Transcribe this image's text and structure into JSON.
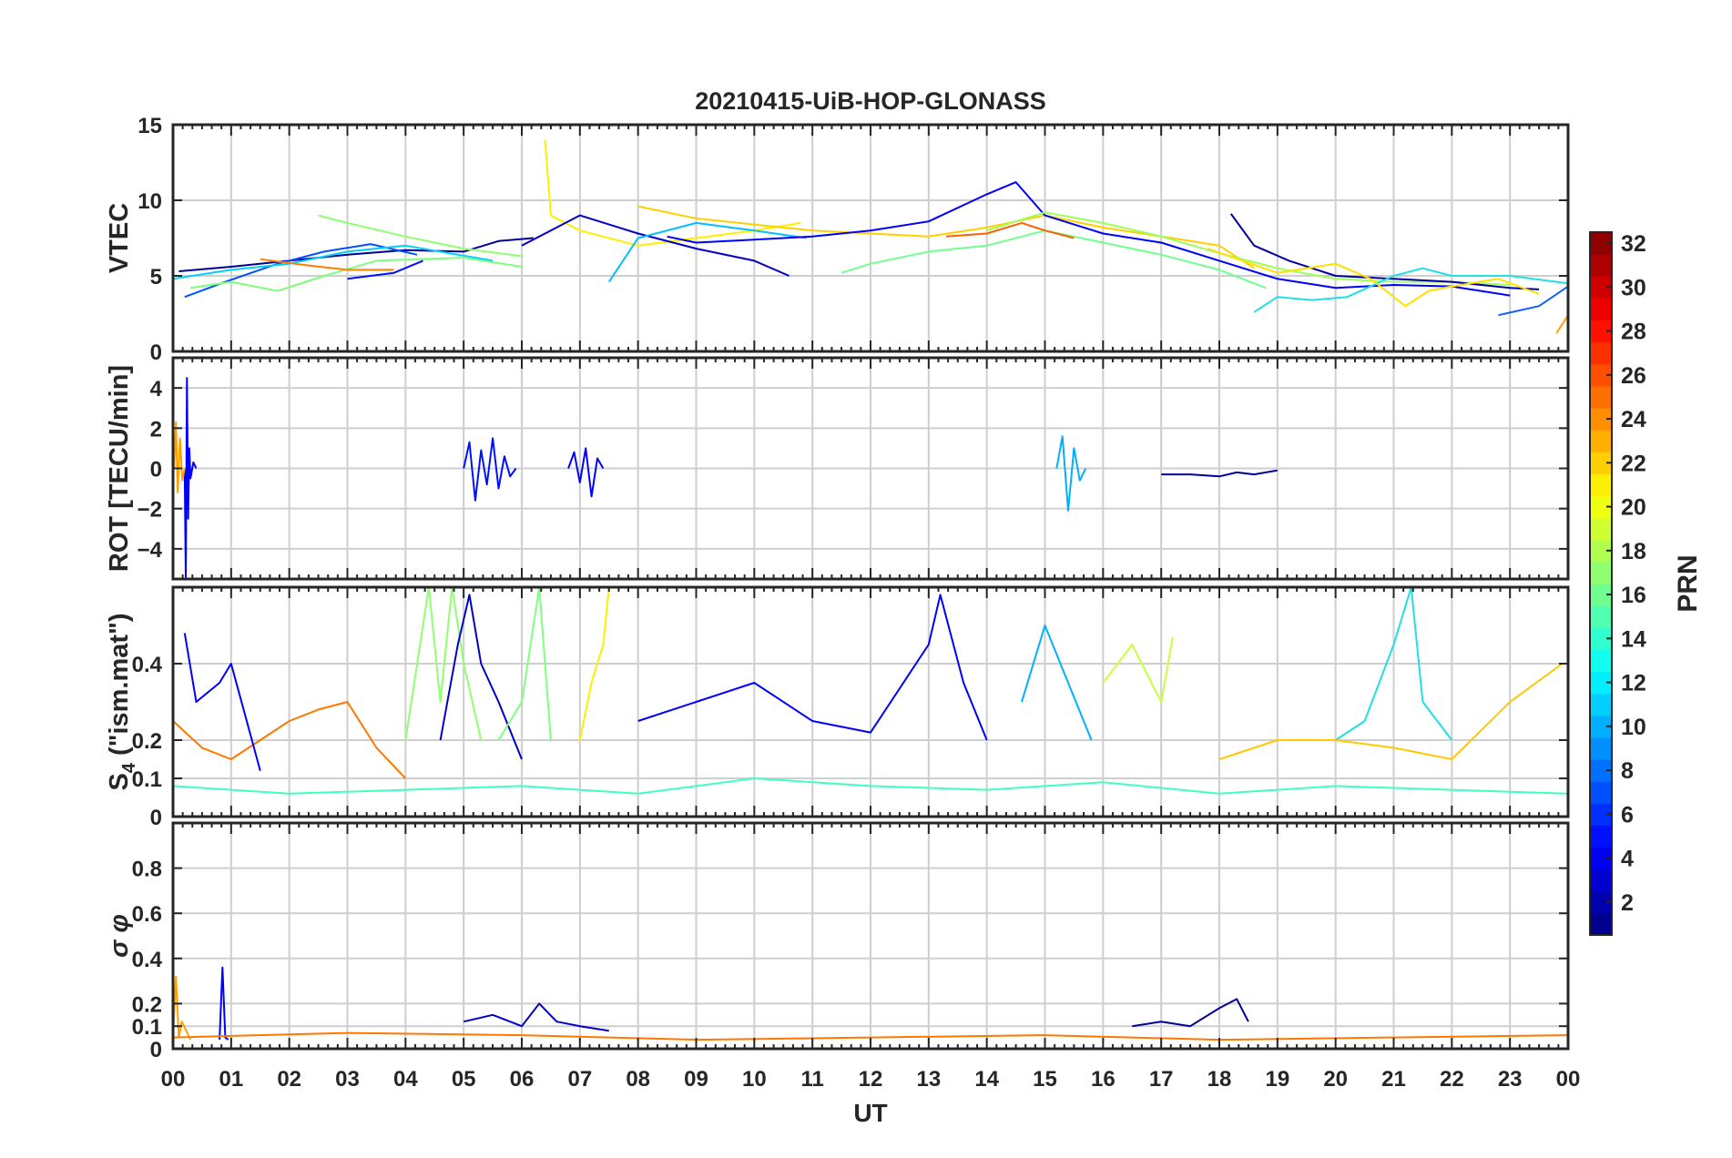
{
  "figure": {
    "title": "20210415-UiB-HOP-GLONASS",
    "xlabel": "UT",
    "x_ticks": [
      "00",
      "01",
      "02",
      "03",
      "04",
      "05",
      "06",
      "07",
      "08",
      "09",
      "10",
      "11",
      "12",
      "13",
      "14",
      "15",
      "16",
      "17",
      "18",
      "19",
      "20",
      "21",
      "22",
      "23",
      "00"
    ]
  },
  "colorbar": {
    "label": "PRN",
    "range": [
      1,
      32
    ],
    "ticks": [
      2,
      4,
      6,
      8,
      10,
      12,
      14,
      16,
      18,
      20,
      22,
      24,
      26,
      28,
      30,
      32
    ],
    "colormap": "jet"
  },
  "chart_data": [
    {
      "type": "line",
      "panel": "vtec",
      "ylabel": "VTEC",
      "xlim": [
        0,
        24
      ],
      "ylim": [
        0,
        15
      ],
      "y_ticks": [
        0,
        5,
        10,
        15
      ],
      "grid": true,
      "series": [
        {
          "color": "#000096",
          "x": [
            0.1,
            1.0,
            2.0,
            3.0,
            4.0,
            5.0,
            5.6,
            6.2
          ],
          "y": [
            5.3,
            5.6,
            6.0,
            6.4,
            6.7,
            6.6,
            7.3,
            7.5
          ]
        },
        {
          "color": "#0050ff",
          "x": [
            0.2,
            0.9,
            1.8,
            2.6,
            3.4,
            4.2
          ],
          "y": [
            3.6,
            4.6,
            5.8,
            6.6,
            7.1,
            6.4
          ]
        },
        {
          "color": "#00d0ff",
          "x": [
            0.0,
            1.0,
            2.0,
            3.0,
            4.0,
            5.5
          ],
          "y": [
            4.8,
            5.4,
            5.8,
            6.6,
            7.0,
            6.0
          ]
        },
        {
          "color": "#7dff7a",
          "x": [
            0.3,
            1.0,
            1.8,
            2.6,
            3.5,
            5.0,
            6.0
          ],
          "y": [
            4.2,
            4.6,
            4.0,
            5.0,
            6.0,
            6.2,
            5.6
          ]
        },
        {
          "color": "#90ff70",
          "x": [
            2.5,
            3.0,
            4.0,
            5.0,
            6.0
          ],
          "y": [
            9.0,
            8.5,
            7.6,
            6.8,
            6.3
          ]
        },
        {
          "color": "#ff8000",
          "x": [
            1.5,
            2.3,
            3.0,
            3.8
          ],
          "y": [
            6.1,
            5.7,
            5.4,
            5.4
          ]
        },
        {
          "color": "#0010ff",
          "x": [
            3.0,
            3.8,
            4.3
          ],
          "y": [
            4.8,
            5.2,
            6.0
          ]
        },
        {
          "color": "#ffef00",
          "x": [
            6.4,
            6.5,
            7.0,
            8.0,
            9.0,
            10.0,
            10.8
          ],
          "y": [
            14.0,
            9.0,
            8.0,
            7.0,
            7.5,
            8.0,
            8.5
          ]
        },
        {
          "color": "#0000c8",
          "x": [
            6.0,
            7.0,
            8.0,
            9.0,
            10.0,
            10.6
          ],
          "y": [
            7.0,
            9.0,
            7.8,
            6.8,
            6.0,
            5.0
          ]
        },
        {
          "color": "#00c0ff",
          "x": [
            7.5,
            8.0,
            9.0,
            10.0,
            10.9
          ],
          "y": [
            4.6,
            7.5,
            8.5,
            8.0,
            7.5
          ]
        },
        {
          "color": "#ffd000",
          "x": [
            8.0,
            9.0,
            10.0,
            11.0,
            12.0,
            13.0,
            14.0,
            15.0,
            16.0,
            17.0,
            18.0,
            18.6
          ],
          "y": [
            9.6,
            8.8,
            8.4,
            8.0,
            7.8,
            7.6,
            8.2,
            9.0,
            8.2,
            7.6,
            7.0,
            5.5
          ]
        },
        {
          "color": "#0000ff",
          "x": [
            8.5,
            9.0,
            10.0,
            11.0,
            12.0,
            13.0,
            14.0,
            14.5,
            15.0,
            16.0,
            17.0,
            18.0,
            19.0,
            20.0,
            21.0,
            22.0,
            23.0
          ],
          "y": [
            7.6,
            7.2,
            7.4,
            7.6,
            8.0,
            8.6,
            10.4,
            11.2,
            9.0,
            7.8,
            7.2,
            6.0,
            4.8,
            4.2,
            4.4,
            4.3,
            3.7
          ]
        },
        {
          "color": "#70ff90",
          "x": [
            11.5,
            12.0,
            13.0,
            14.0,
            15.0,
            16.0,
            17.0,
            18.0,
            18.8
          ],
          "y": [
            5.2,
            5.8,
            6.6,
            7.0,
            8.0,
            7.2,
            6.4,
            5.4,
            4.2
          ]
        },
        {
          "color": "#ff6000",
          "x": [
            13.3,
            14.0,
            14.6,
            15.0,
            15.5
          ],
          "y": [
            7.6,
            7.8,
            8.5,
            8.0,
            7.5
          ]
        },
        {
          "color": "#9cff5a",
          "x": [
            14.0,
            15.0,
            16.0,
            17.0,
            18.0,
            19.0,
            20.0,
            21.0,
            22.0,
            23.0
          ],
          "y": [
            8.0,
            9.2,
            8.5,
            7.6,
            6.5,
            5.5,
            4.8,
            4.6,
            4.6,
            4.4
          ]
        },
        {
          "color": "#0000a0",
          "x": [
            18.2,
            18.6,
            19.2,
            20.0,
            21.0,
            22.0,
            23.0,
            23.5
          ],
          "y": [
            9.1,
            7.0,
            6.0,
            5.0,
            4.8,
            4.6,
            4.2,
            4.1
          ]
        },
        {
          "color": "#20e0e0",
          "x": [
            18.6,
            19.0,
            19.6,
            20.2,
            21.0,
            21.5,
            22.0,
            23.0,
            24.0
          ],
          "y": [
            2.6,
            3.6,
            3.4,
            3.6,
            5.0,
            5.5,
            5.0,
            5.0,
            4.5
          ]
        },
        {
          "color": "#ffe000",
          "x": [
            17.8,
            19.0,
            20.0,
            20.6,
            21.2,
            21.6,
            22.0,
            22.8,
            23.5
          ],
          "y": [
            6.8,
            5.2,
            5.8,
            4.8,
            3.0,
            4.0,
            4.3,
            4.8,
            3.8
          ]
        },
        {
          "color": "#1060ff",
          "x": [
            22.8,
            23.5,
            24.0
          ],
          "y": [
            2.4,
            3.0,
            4.3
          ]
        },
        {
          "color": "#ffa000",
          "x": [
            23.8,
            24.0
          ],
          "y": [
            1.2,
            2.4
          ]
        }
      ]
    },
    {
      "type": "line",
      "panel": "rot",
      "ylabel": "ROT [TECU/min]",
      "xlim": [
        0,
        24
      ],
      "ylim": [
        -5.5,
        5.5
      ],
      "y_ticks": [
        -4,
        -2,
        0,
        2,
        4
      ],
      "grid": true,
      "series": [
        {
          "color": "#0000ff",
          "x": [
            0.2,
            0.22,
            0.24,
            0.26,
            0.28,
            0.3,
            0.35,
            0.4
          ],
          "y": [
            0,
            -5.4,
            4.5,
            -2.5,
            1.0,
            -0.5,
            0.3,
            0
          ]
        },
        {
          "color": "#ffa000",
          "x": [
            0.02,
            0.05,
            0.08,
            0.12,
            0.16,
            0.2
          ],
          "y": [
            0,
            2.3,
            -1.2,
            1.5,
            -0.6,
            0
          ]
        },
        {
          "color": "#0010ff",
          "x": [
            5.0,
            5.1,
            5.2,
            5.3,
            5.4,
            5.5,
            5.6,
            5.7,
            5.8,
            5.9
          ],
          "y": [
            0,
            1.3,
            -1.6,
            0.9,
            -0.8,
            1.5,
            -1.0,
            0.6,
            -0.4,
            0
          ]
        },
        {
          "color": "#00b0ff",
          "x": [
            15.2,
            15.3,
            15.4,
            15.5,
            15.6,
            15.7
          ],
          "y": [
            0,
            1.6,
            -2.1,
            1.0,
            -0.6,
            0
          ]
        },
        {
          "color": "#0000ff",
          "x": [
            6.8,
            6.9,
            7.0,
            7.1,
            7.2,
            7.3,
            7.4
          ],
          "y": [
            0,
            0.8,
            -0.7,
            1.0,
            -1.4,
            0.5,
            0
          ]
        },
        {
          "color": "#000096",
          "x": [
            17.0,
            17.5,
            18.0,
            18.3,
            18.6,
            19.0
          ],
          "y": [
            -0.3,
            -0.3,
            -0.4,
            -0.2,
            -0.3,
            -0.1
          ]
        }
      ]
    },
    {
      "type": "line",
      "panel": "s4",
      "ylabel": "S4 (\"ism.mat\")",
      "xlim": [
        0,
        24
      ],
      "ylim": [
        0,
        0.6
      ],
      "y_ticks": [
        0,
        0.1,
        0.2,
        0.4
      ],
      "y_tick_labels": [
        "0",
        "0.1",
        "0.2",
        "0.4"
      ],
      "grid": true,
      "series": [
        {
          "color": "#ff7800",
          "x": [
            0.0,
            0.5,
            1.0,
            1.5,
            2.0,
            2.5,
            3.0,
            3.5,
            4.0
          ],
          "y": [
            0.25,
            0.18,
            0.15,
            0.2,
            0.25,
            0.28,
            0.3,
            0.18,
            0.1
          ]
        },
        {
          "color": "#0000ff",
          "x": [
            0.2,
            0.4,
            0.8,
            1.0,
            1.5
          ],
          "y": [
            0.48,
            0.3,
            0.35,
            0.4,
            0.12
          ]
        },
        {
          "color": "#90ff70",
          "x": [
            4.0,
            4.4,
            4.6,
            4.8,
            5.0,
            5.3
          ],
          "y": [
            0.2,
            0.6,
            0.3,
            0.6,
            0.4,
            0.2
          ]
        },
        {
          "color": "#0000c8",
          "x": [
            4.6,
            4.9,
            5.1,
            5.3,
            5.6,
            6.0
          ],
          "y": [
            0.2,
            0.45,
            0.58,
            0.4,
            0.3,
            0.15
          ]
        },
        {
          "color": "#80ff80",
          "x": [
            5.6,
            6.0,
            6.3,
            6.5
          ],
          "y": [
            0.2,
            0.3,
            0.6,
            0.2
          ]
        },
        {
          "color": "#ffef00",
          "x": [
            7.0,
            7.2,
            7.4,
            7.5
          ],
          "y": [
            0.2,
            0.35,
            0.45,
            0.6
          ]
        },
        {
          "color": "#0000ff",
          "x": [
            8.0,
            9.0,
            10.0,
            11.0,
            12.0,
            13.0,
            13.2,
            13.6,
            14.0
          ],
          "y": [
            0.25,
            0.3,
            0.35,
            0.25,
            0.22,
            0.45,
            0.58,
            0.35,
            0.2
          ]
        },
        {
          "color": "#00b0ff",
          "x": [
            14.6,
            15.0,
            15.4,
            15.8
          ],
          "y": [
            0.3,
            0.5,
            0.35,
            0.2
          ]
        },
        {
          "color": "#c8ff40",
          "x": [
            16.0,
            16.5,
            17.0,
            17.2
          ],
          "y": [
            0.35,
            0.45,
            0.3,
            0.47
          ]
        },
        {
          "color": "#20e0e0",
          "x": [
            20.0,
            20.5,
            21.0,
            21.3,
            21.5,
            22.0
          ],
          "y": [
            0.2,
            0.25,
            0.45,
            0.6,
            0.3,
            0.2
          ]
        },
        {
          "color": "#ffc800",
          "x": [
            18.0,
            19.0,
            20.0,
            21.0,
            22.0,
            23.0,
            23.9
          ],
          "y": [
            0.15,
            0.2,
            0.2,
            0.18,
            0.15,
            0.3,
            0.4
          ]
        },
        {
          "color": "#40ffc0",
          "x": [
            0.0,
            2.0,
            4.0,
            6.0,
            8.0,
            10.0,
            12.0,
            14.0,
            16.0,
            18.0,
            20.0,
            22.0,
            24.0
          ],
          "y": [
            0.08,
            0.06,
            0.07,
            0.08,
            0.06,
            0.1,
            0.08,
            0.07,
            0.09,
            0.06,
            0.08,
            0.07,
            0.06
          ]
        }
      ]
    },
    {
      "type": "line",
      "panel": "sigma_phi",
      "ylabel": "σ φ",
      "xlim": [
        0,
        24
      ],
      "ylim": [
        0,
        1
      ],
      "y_ticks": [
        0,
        0.1,
        0.2,
        0.4,
        0.6,
        0.8
      ],
      "y_tick_labels": [
        "0",
        "0.1",
        "0.2",
        "0.4",
        "0.6",
        "0.8"
      ],
      "grid": true,
      "series": [
        {
          "color": "#ffa000",
          "x": [
            0.0,
            0.05,
            0.1,
            0.15,
            0.3
          ],
          "y": [
            0.05,
            0.32,
            0.05,
            0.12,
            0.04
          ]
        },
        {
          "color": "#0000ff",
          "x": [
            0.8,
            0.85,
            0.9,
            0.95
          ],
          "y": [
            0.04,
            0.36,
            0.05,
            0.04
          ]
        },
        {
          "color": "#0000c8",
          "x": [
            5.0,
            5.5,
            6.0,
            6.3,
            6.6,
            7.0,
            7.5
          ],
          "y": [
            0.12,
            0.15,
            0.1,
            0.2,
            0.12,
            0.1,
            0.08
          ]
        },
        {
          "color": "#000096",
          "x": [
            16.5,
            17.0,
            17.5,
            18.0,
            18.3,
            18.5
          ],
          "y": [
            0.1,
            0.12,
            0.1,
            0.18,
            0.22,
            0.12
          ]
        },
        {
          "color": "#ff7800",
          "x": [
            0.0,
            3.0,
            6.0,
            9.0,
            12.0,
            15.0,
            18.0,
            21.0,
            24.0
          ],
          "y": [
            0.05,
            0.07,
            0.06,
            0.04,
            0.05,
            0.06,
            0.04,
            0.05,
            0.06
          ]
        }
      ]
    }
  ]
}
